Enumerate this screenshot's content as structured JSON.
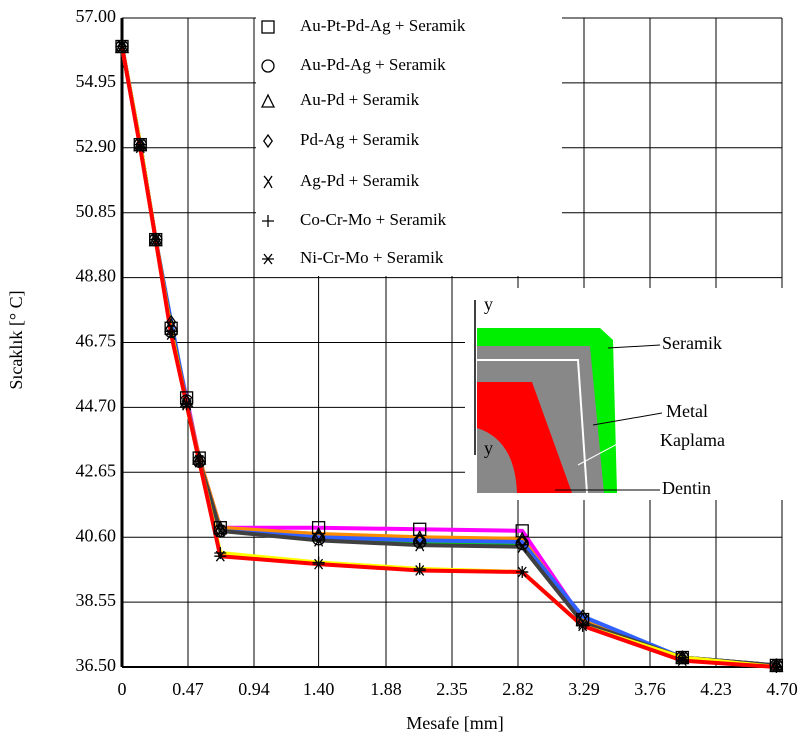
{
  "chart_data": {
    "type": "line",
    "x_label": "Mesafe [mm]",
    "y_label": "Sıcaklık [° C]",
    "x": [
      0,
      0.13,
      0.24,
      0.35,
      0.46,
      0.55,
      0.7,
      1.4,
      2.12,
      2.85,
      3.28,
      3.99,
      4.66
    ],
    "series": [
      {
        "name": "Au-Pt-Pd-Ag + Seramik",
        "color": "#ff00ff",
        "marker": "square",
        "values": [
          56.1,
          53.0,
          50.0,
          47.2,
          45.0,
          43.1,
          40.9,
          40.9,
          40.85,
          40.8,
          38.0,
          36.8,
          36.55
        ]
      },
      {
        "name": "Au-Pd-Ag + Seramik",
        "color": "#00dd00",
        "marker": "circle",
        "values": [
          56.1,
          53.0,
          50.0,
          47.1,
          44.9,
          43.0,
          40.8,
          40.55,
          40.45,
          40.4,
          38.0,
          36.8,
          36.55
        ]
      },
      {
        "name": "Au-Pd + Seramik",
        "color": "#ff8c00",
        "marker": "triangle",
        "values": [
          56.1,
          53.0,
          50.0,
          47.3,
          44.9,
          43.1,
          40.9,
          40.7,
          40.6,
          40.55,
          38.0,
          36.8,
          36.55
        ]
      },
      {
        "name": "Pd-Ag + Seramik",
        "color": "#3060ff",
        "marker": "diamond",
        "values": [
          56.1,
          53.0,
          50.0,
          47.4,
          44.9,
          43.0,
          40.8,
          40.6,
          40.5,
          40.45,
          38.1,
          36.8,
          36.55
        ]
      },
      {
        "name": "Ag-Pd + Seramik",
        "color": "#404040",
        "marker": "chi",
        "values": [
          56.1,
          53.0,
          50.0,
          47.2,
          44.8,
          43.0,
          40.8,
          40.5,
          40.35,
          40.3,
          37.9,
          36.8,
          36.55
        ]
      },
      {
        "name": "Co-Cr-Mo + Seramik",
        "color": "#ffff00",
        "marker": "plus",
        "values": [
          56.1,
          53.0,
          50.0,
          47.1,
          44.8,
          43.0,
          40.1,
          39.8,
          39.6,
          39.5,
          37.8,
          36.8,
          36.5
        ]
      },
      {
        "name": "Ni-Cr-Mo + Seramik",
        "color": "#ff0000",
        "marker": "asterisk",
        "values": [
          56.1,
          52.9,
          50.0,
          47.0,
          44.8,
          43.0,
          40.0,
          39.75,
          39.55,
          39.5,
          37.8,
          36.7,
          36.5
        ]
      }
    ],
    "xlim": [
      0,
      4.7
    ],
    "xticks": [
      0,
      0.47,
      0.94,
      {
        "value": 1.4,
        "label": "1.40"
      },
      1.88,
      2.35,
      2.82,
      3.29,
      3.76,
      4.23,
      {
        "value": 4.7,
        "label": "4.70"
      }
    ],
    "ylim": [
      36.5,
      57
    ],
    "yticks": [
      {
        "value": 36.5,
        "label": "36.50"
      },
      38.55,
      {
        "value": 40.6,
        "label": "40.60"
      },
      42.65,
      {
        "value": 44.7,
        "label": "44.70"
      },
      46.75,
      {
        "value": 48.8,
        "label": "48.80"
      },
      50.85,
      {
        "value": 52.9,
        "label": "52.90"
      },
      54.95,
      {
        "value": 57,
        "label": "57.00"
      }
    ],
    "grid": true
  },
  "inset": {
    "axis_top": "y",
    "axis_bottom": "y",
    "ceramic": "Seramik",
    "metal": "Metal",
    "coating": "Kaplama",
    "dentin": "Dentin"
  }
}
